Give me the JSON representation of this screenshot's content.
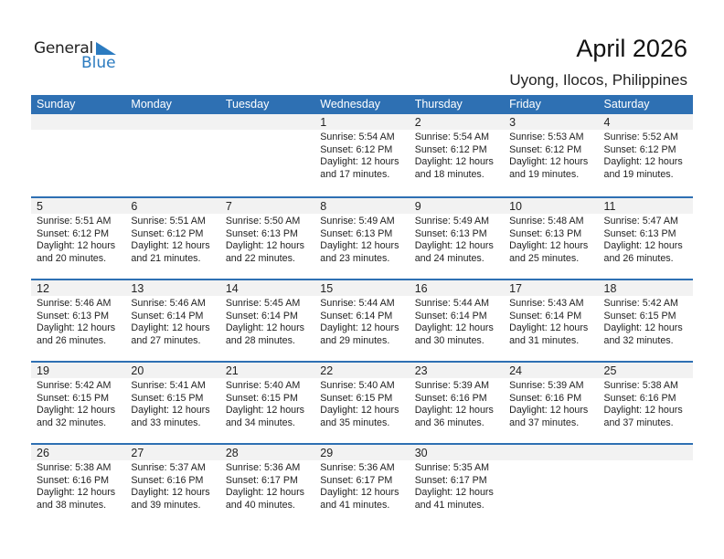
{
  "logo": {
    "line1": "General",
    "line2": "Blue"
  },
  "header": {
    "title": "April 2026",
    "location": "Uyong, Ilocos, Philippines"
  },
  "colors": {
    "accent": "#2e70b3",
    "date_row": "#f2f2f2"
  },
  "weekdays": [
    "Sunday",
    "Monday",
    "Tuesday",
    "Wednesday",
    "Thursday",
    "Friday",
    "Saturday"
  ],
  "weeks": [
    [
      null,
      null,
      null,
      {
        "day": "1",
        "sunrise": "Sunrise: 5:54 AM",
        "sunset": "Sunset: 6:12 PM",
        "daylight": "Daylight: 12 hours",
        "minutes": "and 17 minutes."
      },
      {
        "day": "2",
        "sunrise": "Sunrise: 5:54 AM",
        "sunset": "Sunset: 6:12 PM",
        "daylight": "Daylight: 12 hours",
        "minutes": "and 18 minutes."
      },
      {
        "day": "3",
        "sunrise": "Sunrise: 5:53 AM",
        "sunset": "Sunset: 6:12 PM",
        "daylight": "Daylight: 12 hours",
        "minutes": "and 19 minutes."
      },
      {
        "day": "4",
        "sunrise": "Sunrise: 5:52 AM",
        "sunset": "Sunset: 6:12 PM",
        "daylight": "Daylight: 12 hours",
        "minutes": "and 19 minutes."
      }
    ],
    [
      {
        "day": "5",
        "sunrise": "Sunrise: 5:51 AM",
        "sunset": "Sunset: 6:12 PM",
        "daylight": "Daylight: 12 hours",
        "minutes": "and 20 minutes."
      },
      {
        "day": "6",
        "sunrise": "Sunrise: 5:51 AM",
        "sunset": "Sunset: 6:12 PM",
        "daylight": "Daylight: 12 hours",
        "minutes": "and 21 minutes."
      },
      {
        "day": "7",
        "sunrise": "Sunrise: 5:50 AM",
        "sunset": "Sunset: 6:13 PM",
        "daylight": "Daylight: 12 hours",
        "minutes": "and 22 minutes."
      },
      {
        "day": "8",
        "sunrise": "Sunrise: 5:49 AM",
        "sunset": "Sunset: 6:13 PM",
        "daylight": "Daylight: 12 hours",
        "minutes": "and 23 minutes."
      },
      {
        "day": "9",
        "sunrise": "Sunrise: 5:49 AM",
        "sunset": "Sunset: 6:13 PM",
        "daylight": "Daylight: 12 hours",
        "minutes": "and 24 minutes."
      },
      {
        "day": "10",
        "sunrise": "Sunrise: 5:48 AM",
        "sunset": "Sunset: 6:13 PM",
        "daylight": "Daylight: 12 hours",
        "minutes": "and 25 minutes."
      },
      {
        "day": "11",
        "sunrise": "Sunrise: 5:47 AM",
        "sunset": "Sunset: 6:13 PM",
        "daylight": "Daylight: 12 hours",
        "minutes": "and 26 minutes."
      }
    ],
    [
      {
        "day": "12",
        "sunrise": "Sunrise: 5:46 AM",
        "sunset": "Sunset: 6:13 PM",
        "daylight": "Daylight: 12 hours",
        "minutes": "and 26 minutes."
      },
      {
        "day": "13",
        "sunrise": "Sunrise: 5:46 AM",
        "sunset": "Sunset: 6:14 PM",
        "daylight": "Daylight: 12 hours",
        "minutes": "and 27 minutes."
      },
      {
        "day": "14",
        "sunrise": "Sunrise: 5:45 AM",
        "sunset": "Sunset: 6:14 PM",
        "daylight": "Daylight: 12 hours",
        "minutes": "and 28 minutes."
      },
      {
        "day": "15",
        "sunrise": "Sunrise: 5:44 AM",
        "sunset": "Sunset: 6:14 PM",
        "daylight": "Daylight: 12 hours",
        "minutes": "and 29 minutes."
      },
      {
        "day": "16",
        "sunrise": "Sunrise: 5:44 AM",
        "sunset": "Sunset: 6:14 PM",
        "daylight": "Daylight: 12 hours",
        "minutes": "and 30 minutes."
      },
      {
        "day": "17",
        "sunrise": "Sunrise: 5:43 AM",
        "sunset": "Sunset: 6:14 PM",
        "daylight": "Daylight: 12 hours",
        "minutes": "and 31 minutes."
      },
      {
        "day": "18",
        "sunrise": "Sunrise: 5:42 AM",
        "sunset": "Sunset: 6:15 PM",
        "daylight": "Daylight: 12 hours",
        "minutes": "and 32 minutes."
      }
    ],
    [
      {
        "day": "19",
        "sunrise": "Sunrise: 5:42 AM",
        "sunset": "Sunset: 6:15 PM",
        "daylight": "Daylight: 12 hours",
        "minutes": "and 32 minutes."
      },
      {
        "day": "20",
        "sunrise": "Sunrise: 5:41 AM",
        "sunset": "Sunset: 6:15 PM",
        "daylight": "Daylight: 12 hours",
        "minutes": "and 33 minutes."
      },
      {
        "day": "21",
        "sunrise": "Sunrise: 5:40 AM",
        "sunset": "Sunset: 6:15 PM",
        "daylight": "Daylight: 12 hours",
        "minutes": "and 34 minutes."
      },
      {
        "day": "22",
        "sunrise": "Sunrise: 5:40 AM",
        "sunset": "Sunset: 6:15 PM",
        "daylight": "Daylight: 12 hours",
        "minutes": "and 35 minutes."
      },
      {
        "day": "23",
        "sunrise": "Sunrise: 5:39 AM",
        "sunset": "Sunset: 6:16 PM",
        "daylight": "Daylight: 12 hours",
        "minutes": "and 36 minutes."
      },
      {
        "day": "24",
        "sunrise": "Sunrise: 5:39 AM",
        "sunset": "Sunset: 6:16 PM",
        "daylight": "Daylight: 12 hours",
        "minutes": "and 37 minutes."
      },
      {
        "day": "25",
        "sunrise": "Sunrise: 5:38 AM",
        "sunset": "Sunset: 6:16 PM",
        "daylight": "Daylight: 12 hours",
        "minutes": "and 37 minutes."
      }
    ],
    [
      {
        "day": "26",
        "sunrise": "Sunrise: 5:38 AM",
        "sunset": "Sunset: 6:16 PM",
        "daylight": "Daylight: 12 hours",
        "minutes": "and 38 minutes."
      },
      {
        "day": "27",
        "sunrise": "Sunrise: 5:37 AM",
        "sunset": "Sunset: 6:16 PM",
        "daylight": "Daylight: 12 hours",
        "minutes": "and 39 minutes."
      },
      {
        "day": "28",
        "sunrise": "Sunrise: 5:36 AM",
        "sunset": "Sunset: 6:17 PM",
        "daylight": "Daylight: 12 hours",
        "minutes": "and 40 minutes."
      },
      {
        "day": "29",
        "sunrise": "Sunrise: 5:36 AM",
        "sunset": "Sunset: 6:17 PM",
        "daylight": "Daylight: 12 hours",
        "minutes": "and 41 minutes."
      },
      {
        "day": "30",
        "sunrise": "Sunrise: 5:35 AM",
        "sunset": "Sunset: 6:17 PM",
        "daylight": "Daylight: 12 hours",
        "minutes": "and 41 minutes."
      },
      null,
      null
    ]
  ]
}
